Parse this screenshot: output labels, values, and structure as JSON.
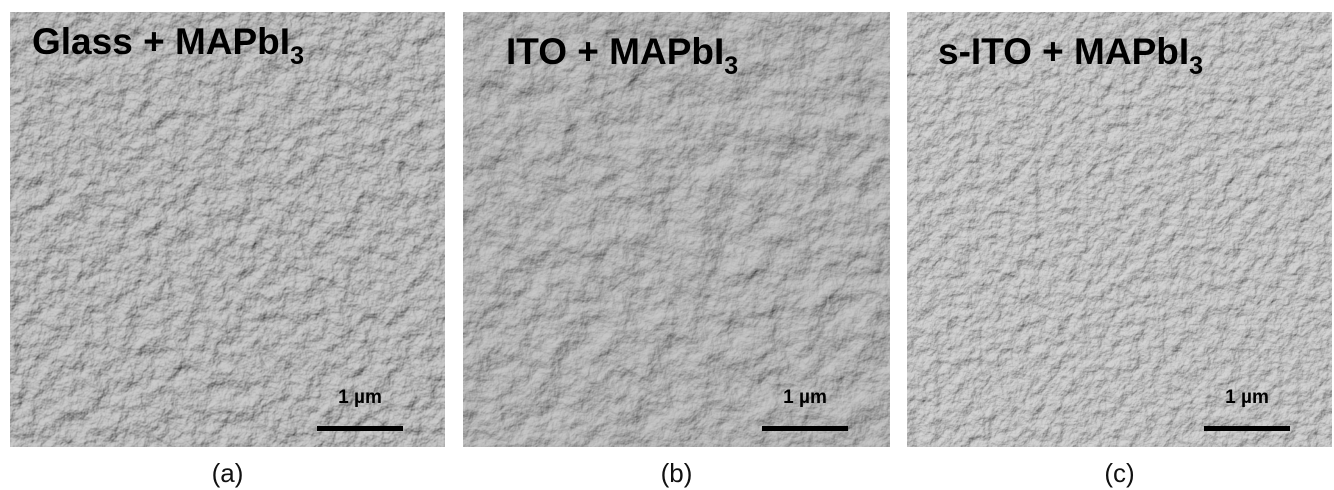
{
  "panels": [
    {
      "title": "Glass + MAPbI",
      "subscript": "3",
      "scale_bar": "1 µm",
      "caption": "(a)"
    },
    {
      "title": "ITO + MAPbI",
      "subscript": "3",
      "scale_bar": "1 µm",
      "caption": "(b)"
    },
    {
      "title": "s-ITO + MAPbI",
      "subscript": "3",
      "scale_bar": "1 µm",
      "caption": "(c)"
    }
  ]
}
